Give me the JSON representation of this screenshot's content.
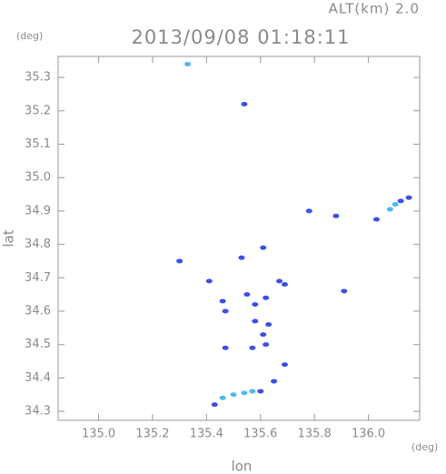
{
  "chart_data": {
    "type": "scatter",
    "title": "2013/09/08 01:18:11",
    "subtitle": "ALT(km) 2.0",
    "x_label": "lon",
    "y_label": "lat",
    "x_unit": "(deg)",
    "y_unit": "(deg)",
    "xlim": [
      134.85,
      136.19
    ],
    "ylim": [
      34.273,
      35.363
    ],
    "xticks": [
      {
        "value": 135,
        "label": "135.0"
      },
      135.2,
      135.4,
      135.6,
      135.8,
      {
        "value": 136,
        "label": "136.0"
      }
    ],
    "yticks": [
      34.3,
      34.4,
      34.5,
      34.6,
      34.7,
      34.8,
      34.9,
      {
        "value": 35,
        "label": "35.0"
      },
      35.1,
      35.2,
      35.3
    ],
    "series": [
      {
        "color": "#3d4fe6",
        "x": [
          135.54,
          135.78,
          135.88,
          136.03,
          136.15,
          136.12,
          135.61,
          135.53,
          135.3,
          135.41,
          135.67,
          135.69,
          135.46,
          135.55,
          135.62,
          135.58,
          135.91,
          135.47,
          135.58,
          135.63,
          135.61,
          135.47,
          135.57,
          135.62,
          135.69,
          135.65,
          135.43,
          135.6
        ],
        "values": [
          35.22,
          34.9,
          34.885,
          34.875,
          34.94,
          34.93,
          34.79,
          34.76,
          34.75,
          34.69,
          34.69,
          34.68,
          34.63,
          34.65,
          34.64,
          34.62,
          34.66,
          34.6,
          34.57,
          34.56,
          34.53,
          34.49,
          34.49,
          34.5,
          34.44,
          34.39,
          34.32,
          34.36
        ]
      },
      {
        "color": "#4fb8f0",
        "x": [
          135.33,
          135.46,
          135.5,
          135.54,
          135.57,
          136.1,
          136.08
        ],
        "values": [
          35.34,
          34.34,
          34.35,
          34.355,
          34.36,
          34.92,
          34.905
        ]
      }
    ]
  }
}
